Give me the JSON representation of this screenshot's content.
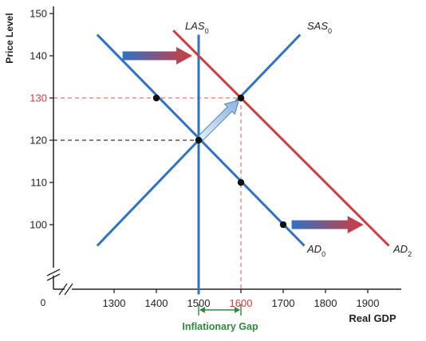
{
  "chart_data": {
    "type": "line",
    "title": "",
    "xlabel": "Real GDP",
    "ylabel": "Price Level",
    "origin_label": "0",
    "x_ticks": [
      1300,
      1400,
      1500,
      1600,
      1700,
      1800,
      1900
    ],
    "y_ticks": [
      100,
      110,
      120,
      130,
      140,
      150
    ],
    "highlight_x_tick": 1600,
    "highlight_y_tick": 130,
    "xlim": [
      1100,
      1950
    ],
    "ylim": [
      83,
      152
    ],
    "series": [
      {
        "key": "las0",
        "label_main": "LAS",
        "label_sub": "0",
        "color": "#2f72c4",
        "points": [
          [
            1500,
            83.5
          ],
          [
            1500,
            145
          ]
        ]
      },
      {
        "key": "sas0",
        "label_main": "SAS",
        "label_sub": "0",
        "color": "#2f72c4",
        "points": [
          [
            1260,
            95
          ],
          [
            1740,
            145
          ]
        ]
      },
      {
        "key": "ad0",
        "label_main": "AD",
        "label_sub": "0",
        "color": "#2f72c4",
        "points": [
          [
            1260,
            145
          ],
          [
            1750,
            95
          ]
        ]
      },
      {
        "key": "ad2",
        "label_main": "AD",
        "label_sub": "2",
        "color": "#d23b3b",
        "points": [
          [
            1440,
            146
          ],
          [
            1950,
            95
          ]
        ]
      }
    ],
    "points": [
      [
        1400,
        130
      ],
      [
        1500,
        120
      ],
      [
        1600,
        110
      ],
      [
        1700,
        100
      ],
      [
        1600,
        130
      ]
    ],
    "guides": [
      {
        "x": 1600,
        "y": 130,
        "color": "#e87070"
      },
      {
        "x": 1500,
        "y": 120,
        "color": "#333333"
      }
    ],
    "shift_arrows": [
      {
        "from": [
          1320,
          140
        ],
        "to": [
          1485,
          140
        ]
      },
      {
        "from": [
          1720,
          100
        ],
        "to": [
          1890,
          100
        ]
      }
    ],
    "movement_arrow": {
      "from": [
        1505,
        120.5
      ],
      "to": [
        1595,
        129.5
      ]
    },
    "gap": {
      "from": 1500,
      "to": 1600,
      "label": "Inflationary Gap",
      "color": "#2e8b3e"
    },
    "colors": {
      "blue": "#2f72c4",
      "red": "#d23b3b",
      "gap_green": "#2e8b3e",
      "axis": "#222222"
    }
  }
}
